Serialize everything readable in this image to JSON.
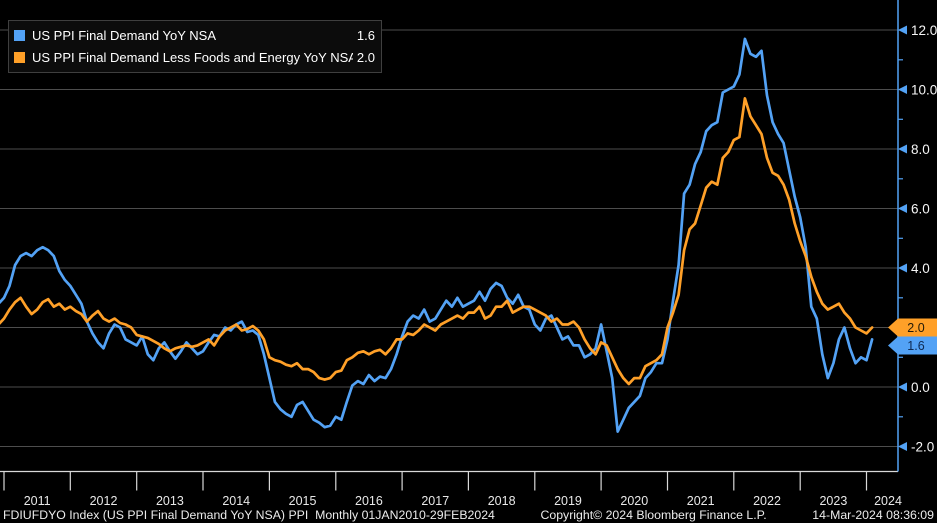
{
  "legend": {
    "items": [
      {
        "label": "US PPI Final Demand YoY NSA",
        "value": "1.6",
        "color": "#53a2f5"
      },
      {
        "label": "US PPI Final Demand Less Foods and Energy YoY NSA",
        "value": "2.0",
        "color": "#ffa028"
      }
    ]
  },
  "status_bar": {
    "left": "FDIUFDYO Index (US PPI Final Demand YoY NSA) PPI  Monthly 01JAN2010-29FEB2024",
    "copyright": "Copyright© 2024 Bloomberg Finance L.P.",
    "datetime": "14-Mar-2024 08:36:09"
  },
  "colors": {
    "background": "#000000",
    "grid": "#4d4d4d",
    "axis_y": "#53a2f5",
    "axis_x": "#d9d9d9",
    "text_primary": "#f5f5f5",
    "text_secondary": "#e8e8e8"
  },
  "chart_data": {
    "type": "line",
    "frequency": "monthly",
    "start_year": 2010,
    "start_month": 12,
    "end_label": "2024-02",
    "x_tick_years": [
      2011,
      2012,
      2013,
      2014,
      2015,
      2016,
      2017,
      2018,
      2019,
      2020,
      2021,
      2022,
      2023,
      2024
    ],
    "y_axis": {
      "side": "right",
      "major_ticks": [
        12,
        10,
        8,
        6,
        4,
        2,
        0,
        -2
      ],
      "minor_ticks": [
        11,
        9,
        7,
        5,
        3,
        1,
        -1
      ],
      "range_displayed": [
        -2.8,
        13.0
      ],
      "grid": "horizontal-only"
    },
    "last_value_badges": [
      {
        "value": "2.0",
        "anchor": 2.0,
        "color": "#ffa028",
        "text_color": "#231a08"
      },
      {
        "value": "1.6",
        "anchor": 1.6,
        "color": "#53a2f5",
        "text_color": "#0e2a52"
      }
    ],
    "series": [
      {
        "id": "ppi-headline",
        "name": "US PPI Final Demand YoY NSA",
        "color": "#53a2f5",
        "last_value": 1.6,
        "values": [
          2.8,
          3.0,
          3.4,
          4.1,
          4.4,
          4.5,
          4.4,
          4.6,
          4.7,
          4.6,
          4.4,
          3.9,
          3.6,
          3.4,
          3.1,
          2.8,
          2.2,
          1.8,
          1.5,
          1.3,
          1.8,
          2.1,
          2.0,
          1.6,
          1.5,
          1.4,
          1.7,
          1.1,
          0.9,
          1.3,
          1.5,
          1.2,
          0.95,
          1.2,
          1.5,
          1.3,
          1.1,
          1.2,
          1.5,
          1.75,
          1.7,
          2.0,
          1.9,
          2.1,
          2.2,
          1.85,
          1.9,
          1.75,
          1.1,
          0.3,
          -0.5,
          -0.75,
          -0.9,
          -1.0,
          -0.6,
          -0.5,
          -0.8,
          -1.1,
          -1.2,
          -1.35,
          -1.3,
          -1.0,
          -1.1,
          -0.5,
          0.05,
          0.2,
          0.1,
          0.4,
          0.2,
          0.35,
          0.3,
          0.6,
          1.1,
          1.7,
          2.2,
          2.4,
          2.3,
          2.6,
          2.2,
          2.3,
          2.6,
          2.9,
          2.7,
          3.0,
          2.7,
          2.8,
          2.9,
          3.2,
          2.9,
          3.3,
          3.5,
          3.4,
          3.0,
          2.8,
          3.1,
          2.7,
          2.6,
          2.1,
          1.9,
          2.3,
          2.4,
          2.0,
          1.6,
          1.7,
          1.4,
          1.4,
          1.0,
          1.1,
          1.3,
          2.1,
          1.2,
          0.3,
          -1.5,
          -1.1,
          -0.7,
          -0.5,
          -0.3,
          0.3,
          0.5,
          0.8,
          0.8,
          1.6,
          2.9,
          4.1,
          6.5,
          6.8,
          7.5,
          7.9,
          8.6,
          8.8,
          8.9,
          9.9,
          10.0,
          10.1,
          10.5,
          11.7,
          11.2,
          11.1,
          11.3,
          9.8,
          8.9,
          8.5,
          8.2,
          7.3,
          6.4,
          5.7,
          4.7,
          2.7,
          2.3,
          1.1,
          0.3,
          0.8,
          1.6,
          2.0,
          1.3,
          0.8,
          1.0,
          0.9,
          1.6
        ]
      },
      {
        "id": "ppi-core",
        "name": "US PPI Final Demand Less Foods and Energy YoY NSA",
        "color": "#ffa028",
        "last_value": 2.0,
        "values": [
          2.1,
          2.3,
          2.6,
          2.85,
          3.0,
          2.7,
          2.45,
          2.6,
          2.85,
          2.95,
          2.7,
          2.8,
          2.6,
          2.7,
          2.55,
          2.45,
          2.2,
          2.4,
          2.55,
          2.3,
          2.2,
          2.3,
          2.15,
          2.1,
          2.0,
          1.75,
          1.7,
          1.65,
          1.55,
          1.45,
          1.3,
          1.2,
          1.3,
          1.35,
          1.4,
          1.35,
          1.4,
          1.5,
          1.6,
          1.4,
          1.7,
          1.9,
          2.0,
          2.1,
          1.9,
          1.95,
          2.05,
          1.9,
          1.6,
          1.0,
          0.9,
          0.85,
          0.75,
          0.7,
          0.8,
          0.6,
          0.6,
          0.5,
          0.3,
          0.25,
          0.3,
          0.5,
          0.55,
          0.9,
          1.0,
          1.15,
          1.2,
          1.1,
          1.2,
          1.25,
          1.1,
          1.3,
          1.6,
          1.6,
          1.8,
          1.75,
          1.9,
          2.1,
          2.0,
          1.9,
          2.1,
          2.2,
          2.3,
          2.4,
          2.3,
          2.5,
          2.5,
          2.7,
          2.3,
          2.4,
          2.7,
          2.7,
          2.9,
          2.5,
          2.6,
          2.7,
          2.7,
          2.6,
          2.5,
          2.4,
          2.2,
          2.3,
          2.1,
          2.1,
          2.2,
          2.0,
          1.6,
          1.3,
          1.1,
          1.5,
          1.4,
          1.0,
          0.6,
          0.3,
          0.1,
          0.3,
          0.3,
          0.7,
          0.8,
          0.9,
          1.1,
          2.0,
          2.5,
          3.1,
          4.6,
          5.3,
          5.5,
          6.1,
          6.7,
          6.9,
          6.8,
          7.7,
          7.9,
          8.3,
          8.4,
          9.7,
          9.1,
          8.8,
          8.5,
          7.7,
          7.2,
          7.1,
          6.8,
          6.3,
          5.5,
          4.9,
          4.4,
          3.7,
          3.2,
          2.8,
          2.6,
          2.7,
          2.8,
          2.5,
          2.3,
          2.0,
          1.9,
          1.8,
          2.0
        ]
      }
    ]
  }
}
